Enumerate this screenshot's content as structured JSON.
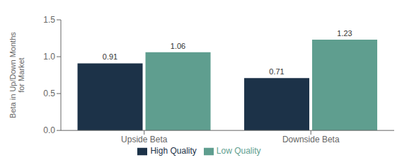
{
  "chart_data": {
    "type": "bar",
    "categories": [
      "Upside Beta",
      "Downside Beta"
    ],
    "series": [
      {
        "name": "High Quality",
        "color": "#1c3248",
        "values": [
          0.91,
          0.71
        ]
      },
      {
        "name": "Low Quality",
        "color": "#5f9e8f",
        "values": [
          1.06,
          1.23
        ]
      }
    ],
    "ylabel": "Beta in Up/Down Months\nfor Market",
    "ylim": [
      0,
      1.5
    ],
    "yticks": [
      {
        "value": 0,
        "label": "0.0"
      },
      0.5,
      {
        "value": 1,
        "label": "1.0"
      },
      1.5
    ],
    "data_labels": true,
    "grid": false,
    "legend": "bottom"
  }
}
